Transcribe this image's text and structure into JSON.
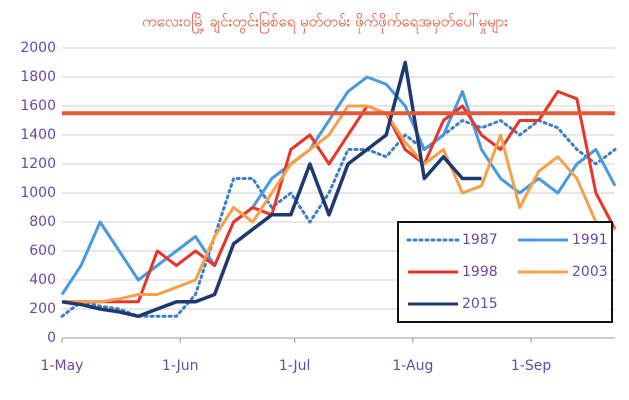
{
  "chart_data": {
    "type": "line",
    "title": "ကလေးဝမြို့ ချင်းတွင်းမြစ်ရေ မှတ်တမ်း ဖိုက်ဖိုက်ရေအမှတ်ပေါ်မှုများ",
    "x": [
      0,
      5,
      10,
      15,
      20,
      25,
      30,
      35,
      40,
      45,
      50,
      55,
      60,
      65,
      70,
      75,
      80,
      85,
      90,
      95,
      100,
      105,
      110,
      115,
      120,
      125,
      130,
      135,
      140,
      145
    ],
    "xlim": [
      0,
      145
    ],
    "xticks": [
      {
        "value": 0,
        "label": "1-May"
      },
      {
        "value": 31,
        "label": "1-Jun"
      },
      {
        "value": 61,
        "label": "1-Jul"
      },
      {
        "value": 92,
        "label": "1-Aug"
      },
      {
        "value": 123,
        "label": "1-Sep"
      }
    ],
    "ylim": [
      0,
      2000
    ],
    "yticks": [
      0,
      200,
      400,
      600,
      800,
      1000,
      1200,
      1400,
      1600,
      1800,
      2000
    ],
    "grid": true,
    "threshold": {
      "value": 1550,
      "color": "#e05a3a"
    },
    "legend": "lower right",
    "series": [
      {
        "name": "1987",
        "color": "#3a7fc8",
        "dash": "dotted",
        "values": [
          150,
          250,
          220,
          200,
          150,
          150,
          150,
          300,
          700,
          1100,
          1100,
          900,
          1000,
          800,
          1000,
          1300,
          1300,
          1250,
          1400,
          1300,
          1400,
          1500,
          1450,
          1500,
          1400,
          1500,
          1450,
          1300,
          1200,
          1300
        ]
      },
      {
        "name": "1991",
        "color": "#4a9ae0",
        "values": [
          300,
          500,
          800,
          600,
          400,
          500,
          600,
          700,
          500,
          800,
          900,
          1100,
          1200,
          1300,
          1500,
          1700,
          1800,
          1750,
          1600,
          1300,
          1400,
          1700,
          1300,
          1100,
          1000,
          1100,
          1000,
          1200,
          1300,
          1050
        ]
      },
      {
        "name": "1998",
        "color": "#e8352a",
        "values": [
          250,
          250,
          250,
          250,
          250,
          600,
          500,
          600,
          500,
          800,
          900,
          850,
          1300,
          1400,
          1200,
          1400,
          1600,
          1550,
          1300,
          1200,
          1500,
          1600,
          1400,
          1300,
          1500,
          1500,
          1700,
          1650,
          1000,
          750
        ]
      },
      {
        "name": "2003",
        "color": "#f5a04a",
        "values": [
          250,
          250,
          250,
          270,
          300,
          300,
          350,
          400,
          700,
          900,
          800,
          1000,
          1200,
          1300,
          1400,
          1600,
          1600,
          1550,
          1350,
          1200,
          1300,
          1000,
          1050,
          1400,
          900,
          1150,
          1250,
          1100,
          800,
          750
        ]
      },
      {
        "name": "2015",
        "color": "#1e3870",
        "values": [
          250,
          230,
          200,
          180,
          150,
          200,
          250,
          250,
          300,
          650,
          750,
          850,
          850,
          1200,
          850,
          1200,
          1300,
          1400,
          1900,
          1100,
          1250,
          1100,
          1100,
          null,
          null,
          null,
          null,
          null,
          null,
          null
        ]
      }
    ]
  }
}
